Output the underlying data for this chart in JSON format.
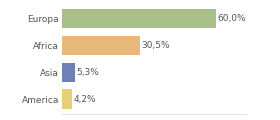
{
  "categories": [
    "Europa",
    "Africa",
    "Asia",
    "America"
  ],
  "values": [
    60.0,
    30.5,
    5.3,
    4.2
  ],
  "bar_colors": [
    "#a8bf8a",
    "#e8b87a",
    "#6d80b8",
    "#e8d07a"
  ],
  "labels": [
    "60,0%",
    "30,5%",
    "5,3%",
    "4,2%"
  ],
  "xlim": [
    0,
    72
  ],
  "background_color": "#ffffff",
  "label_fontsize": 6.5,
  "category_fontsize": 6.5,
  "bar_height": 0.72,
  "grid_color": "#dddddd",
  "text_color": "#555555"
}
